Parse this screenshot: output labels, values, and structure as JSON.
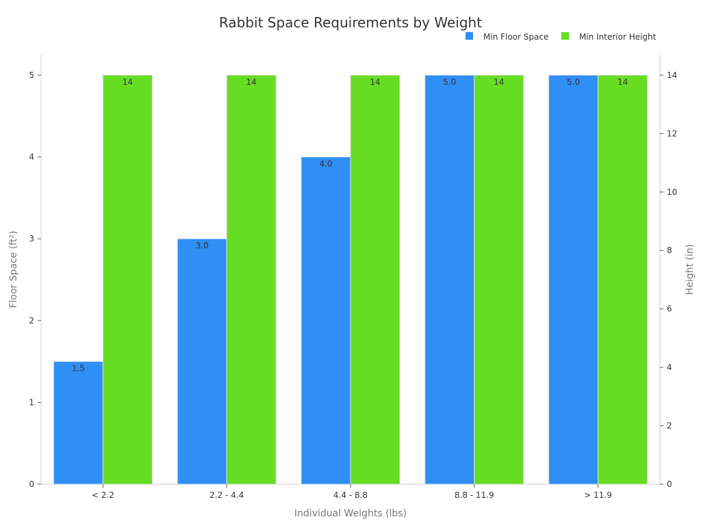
{
  "chart_data": {
    "type": "bar",
    "title": "Rabbit Space Requirements by Weight",
    "xlabel": "Individual Weights (lbs)",
    "ylabel": "Floor Space (ft²)",
    "y2label": "Height (in)",
    "categories": [
      "< 2.2",
      "2.2 - 4.4",
      "4.4 - 8.8",
      "8.8 - 11.9",
      "> 11.9"
    ],
    "series": [
      {
        "name": "Min Floor Space",
        "axis": "left",
        "color": "#2f8ff5",
        "values": [
          1.5,
          3.0,
          4.0,
          5.0,
          5.0
        ],
        "labels": [
          "1.5",
          "3.0",
          "4.0",
          "5.0",
          "5.0"
        ]
      },
      {
        "name": "Min Interior Height",
        "axis": "right",
        "color": "#66dd22",
        "values": [
          14,
          14,
          14,
          14,
          14
        ],
        "labels": [
          "14",
          "14",
          "14",
          "14",
          "14"
        ]
      }
    ],
    "ylim": [
      0,
      5.25
    ],
    "y2lim": [
      0,
      14.7
    ],
    "yticks": [
      0,
      1,
      2,
      3,
      4,
      5
    ],
    "y2ticks": [
      0,
      2,
      4,
      6,
      8,
      10,
      12,
      14
    ],
    "legend_position": "top-right",
    "grid": false
  }
}
